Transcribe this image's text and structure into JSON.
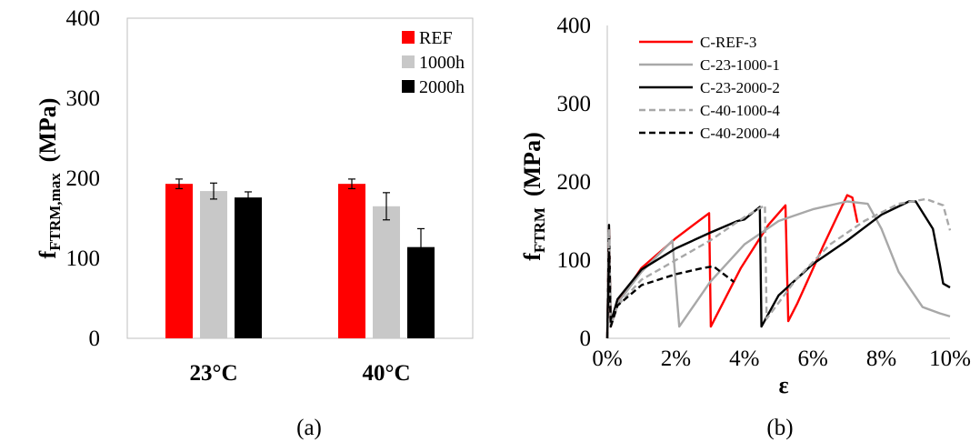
{
  "chart_data": [
    {
      "type": "bar",
      "caption": "(a)",
      "categories": [
        "23°C",
        "40°C"
      ],
      "series": [
        {
          "name": "REF",
          "color": "#ff0000",
          "values": [
            193,
            193
          ],
          "errors": [
            6,
            6
          ]
        },
        {
          "name": "1000h",
          "color": "#c8c8c8",
          "values": [
            184,
            165
          ],
          "errors": [
            10,
            17
          ]
        },
        {
          "name": "2000h",
          "color": "#000000",
          "values": [
            176,
            114
          ],
          "errors": [
            7,
            23
          ]
        }
      ],
      "ylabel_main": "f",
      "ylabel_sub": "FTRM,max",
      "ylabel_unit": "(MPa)",
      "ylim": [
        0,
        400
      ],
      "yticks": [
        "0",
        "100",
        "200",
        "300",
        "400"
      ],
      "legend_position": "top-right",
      "grid": false
    },
    {
      "type": "line",
      "caption": "(b)",
      "xlabel": "ε",
      "ylabel_main": "f",
      "ylabel_sub": "FTRM",
      "ylabel_unit": "(MPa)",
      "xlim": [
        0,
        10
      ],
      "ylim": [
        0,
        400
      ],
      "xticks": [
        "0%",
        "2%",
        "4%",
        "6%",
        "8%",
        "10%"
      ],
      "yticks": [
        "0",
        "100",
        "200",
        "300",
        "400"
      ],
      "legend_position": "top-left",
      "grid": false,
      "series": [
        {
          "name": "C-REF-3",
          "color": "#ff0000",
          "dash": "solid",
          "x": [
            0,
            0.05,
            0.1,
            0.3,
            1.0,
            2.0,
            2.97,
            3.02,
            3.9,
            4.7,
            5.2,
            5.28,
            5.55,
            6.3,
            7.0,
            7.15,
            7.3
          ],
          "y": [
            0,
            140,
            15,
            45,
            90,
            128,
            160,
            15,
            90,
            145,
            170,
            22,
            45,
            118,
            183,
            180,
            148
          ]
        },
        {
          "name": "C-23-1000-1",
          "color": "#a8a8a8",
          "dash": "solid",
          "x": [
            0,
            0.05,
            0.1,
            0.3,
            1.0,
            1.9,
            2.1,
            3.0,
            4.0,
            5.0,
            6.0,
            7.0,
            7.6,
            8.0,
            8.5,
            9.2,
            9.7,
            10.0
          ],
          "y": [
            0,
            130,
            15,
            45,
            85,
            125,
            15,
            72,
            120,
            150,
            165,
            175,
            172,
            140,
            85,
            40,
            32,
            28
          ]
        },
        {
          "name": "C-23-2000-2",
          "color": "#000000",
          "dash": "solid",
          "x": [
            0,
            0.05,
            0.1,
            0.3,
            1.0,
            2.0,
            3.0,
            3.8,
            4.0,
            4.45,
            4.5,
            5.0,
            6.0,
            7.0,
            8.0,
            8.8,
            9.0,
            9.5,
            9.7,
            9.8,
            10.0
          ],
          "y": [
            0,
            145,
            20,
            50,
            88,
            115,
            135,
            150,
            152,
            168,
            15,
            55,
            95,
            125,
            158,
            175,
            175,
            140,
            95,
            70,
            65
          ]
        },
        {
          "name": "C-40-1000-4",
          "color": "#a8a8a8",
          "dash": "dashed",
          "x": [
            0,
            0.05,
            0.1,
            0.3,
            1.0,
            2.0,
            3.0,
            4.0,
            4.6,
            4.65,
            5.5,
            6.5,
            7.5,
            8.5,
            9.3,
            9.8,
            10.0
          ],
          "y": [
            0,
            140,
            15,
            42,
            75,
            100,
            125,
            155,
            170,
            25,
            75,
            120,
            150,
            172,
            178,
            170,
            138
          ]
        },
        {
          "name": "C-40-2000-4",
          "color": "#000000",
          "dash": "dashed",
          "x": [
            0,
            0.05,
            0.1,
            0.3,
            1.0,
            2.0,
            2.8,
            3.1,
            3.4,
            3.7
          ],
          "y": [
            0,
            110,
            15,
            42,
            68,
            82,
            90,
            92,
            82,
            72
          ]
        }
      ]
    }
  ]
}
